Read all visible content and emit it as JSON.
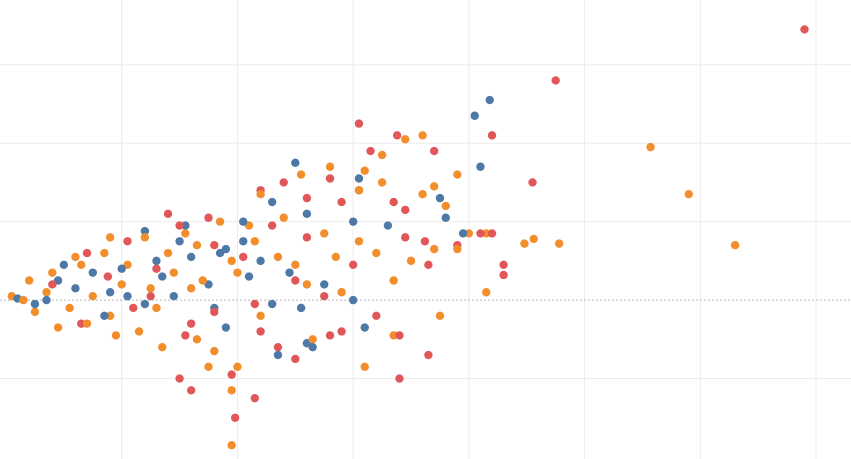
{
  "colors": {
    "background": "#ffffff",
    "grid": "#ececec",
    "zero_line": "#b8b8b8",
    "red": "#e15759",
    "blue": "#4e79a7",
    "orange": "#f28e2b"
  },
  "chart_data": {
    "type": "scatter",
    "title": "",
    "xlabel": "",
    "ylabel": "",
    "xlim": [
      0,
      7.25
    ],
    "ylim": [
      -2,
      3.8
    ],
    "x_gridlines": [
      1,
      2,
      3,
      4,
      5,
      6,
      7
    ],
    "y_gridlines": [
      -1,
      0,
      1,
      2,
      3
    ],
    "zero_line": {
      "y": 0,
      "style": "dotted"
    },
    "grid": true,
    "legend": "none",
    "series": [
      {
        "color_key": "red",
        "points": [
          [
            6.9,
            3.45
          ],
          [
            4.75,
            2.8
          ],
          [
            3.05,
            2.25
          ],
          [
            3.38,
            2.1
          ],
          [
            4.2,
            2.1
          ],
          [
            3.15,
            1.9
          ],
          [
            3.7,
            1.9
          ],
          [
            4.55,
            1.5
          ],
          [
            2.4,
            1.5
          ],
          [
            2.2,
            1.4
          ],
          [
            2.8,
            1.55
          ],
          [
            1.4,
            1.1
          ],
          [
            1.75,
            1.05
          ],
          [
            2.6,
            1.3
          ],
          [
            2.9,
            1.25
          ],
          [
            3.45,
            1.15
          ],
          [
            4.2,
            0.85
          ],
          [
            4.3,
            0.32
          ],
          [
            3.9,
            0.7
          ],
          [
            3.65,
            0.45
          ],
          [
            2.5,
            0.25
          ],
          [
            2.15,
            -0.05
          ],
          [
            1.8,
            -0.15
          ],
          [
            1.6,
            -0.3
          ],
          [
            2.2,
            -0.4
          ],
          [
            2.35,
            -0.6
          ],
          [
            2.9,
            -0.4
          ],
          [
            2.55,
            -0.1
          ],
          [
            3.2,
            -0.2
          ],
          [
            2.75,
            0.05
          ],
          [
            3.35,
            1.25
          ],
          [
            3.65,
            -0.7
          ],
          [
            3.4,
            -0.45
          ],
          [
            1.5,
            0.95
          ],
          [
            1.25,
            0.05
          ],
          [
            1.55,
            -0.45
          ],
          [
            1.95,
            -0.95
          ],
          [
            1.5,
            -1.0
          ],
          [
            1.6,
            -1.15
          ],
          [
            1.98,
            -1.5
          ],
          [
            2.15,
            -1.25
          ],
          [
            3.4,
            -1.0
          ],
          [
            3.62,
            0.75
          ],
          [
            4.1,
            0.85
          ],
          [
            4.3,
            0.45
          ],
          [
            2.05,
            0.55
          ],
          [
            2.3,
            0.95
          ],
          [
            3.0,
            0.45
          ],
          [
            3.45,
            0.8
          ],
          [
            2.6,
            0.8
          ],
          [
            1.8,
            0.7
          ],
          [
            1.05,
            0.75
          ],
          [
            0.88,
            0.3
          ],
          [
            1.1,
            -0.1
          ],
          [
            0.65,
            -0.3
          ],
          [
            0.4,
            0.2
          ],
          [
            2.5,
            -0.75
          ],
          [
            2.8,
            -0.45
          ],
          [
            0.7,
            0.6
          ],
          [
            1.3,
            0.4
          ]
        ]
      },
      {
        "color_key": "blue",
        "points": [
          [
            4.18,
            2.55
          ],
          [
            4.05,
            2.35
          ],
          [
            2.5,
            1.75
          ],
          [
            4.1,
            1.7
          ],
          [
            3.05,
            1.4
          ],
          [
            2.3,
            1.25
          ],
          [
            2.6,
            1.1
          ],
          [
            3.0,
            1.0
          ],
          [
            3.8,
            1.05
          ],
          [
            3.3,
            0.95
          ],
          [
            1.2,
            0.88
          ],
          [
            1.5,
            0.75
          ],
          [
            1.9,
            0.65
          ],
          [
            2.2,
            0.5
          ],
          [
            2.45,
            0.35
          ],
          [
            2.1,
            0.3
          ],
          [
            1.75,
            0.2
          ],
          [
            1.45,
            0.05
          ],
          [
            1.2,
            -0.05
          ],
          [
            0.9,
            0.1
          ],
          [
            0.6,
            0.15
          ],
          [
            0.35,
            0.0
          ],
          [
            0.1,
            0.02
          ],
          [
            0.45,
            0.25
          ],
          [
            0.75,
            0.35
          ],
          [
            1.0,
            0.4
          ],
          [
            1.3,
            0.5
          ],
          [
            1.6,
            0.55
          ],
          [
            1.85,
            0.6
          ],
          [
            2.05,
            0.75
          ],
          [
            2.75,
            0.2
          ],
          [
            3.0,
            0.0
          ],
          [
            2.55,
            -0.1
          ],
          [
            2.3,
            -0.05
          ],
          [
            1.8,
            -0.1
          ],
          [
            1.9,
            -0.35
          ],
          [
            2.65,
            -0.6
          ],
          [
            2.35,
            -0.7
          ],
          [
            2.6,
            -0.55
          ],
          [
            3.1,
            -0.35
          ],
          [
            3.05,
            1.55
          ],
          [
            3.75,
            1.3
          ],
          [
            1.55,
            0.95
          ],
          [
            2.05,
            1.0
          ],
          [
            0.5,
            0.45
          ],
          [
            1.05,
            0.05
          ],
          [
            0.25,
            -0.05
          ],
          [
            3.95,
            0.85
          ],
          [
            1.35,
            0.3
          ],
          [
            0.85,
            -0.2
          ]
        ]
      },
      {
        "color_key": "orange",
        "points": [
          [
            5.57,
            1.95
          ],
          [
            5.9,
            1.35
          ],
          [
            6.3,
            0.7
          ],
          [
            4.78,
            0.72
          ],
          [
            4.56,
            0.78
          ],
          [
            4.48,
            0.72
          ],
          [
            4.15,
            0.85
          ],
          [
            4.0,
            0.85
          ],
          [
            3.8,
            1.2
          ],
          [
            3.6,
            1.35
          ],
          [
            3.25,
            1.5
          ],
          [
            3.05,
            1.4
          ],
          [
            2.8,
            1.7
          ],
          [
            2.55,
            1.6
          ],
          [
            2.2,
            1.35
          ],
          [
            2.4,
            1.05
          ],
          [
            2.1,
            0.95
          ],
          [
            1.85,
            1.0
          ],
          [
            1.55,
            0.85
          ],
          [
            1.2,
            0.8
          ],
          [
            0.9,
            0.8
          ],
          [
            0.65,
            0.45
          ],
          [
            0.4,
            0.35
          ],
          [
            0.2,
            0.25
          ],
          [
            0.05,
            0.05
          ],
          [
            0.25,
            -0.15
          ],
          [
            0.45,
            -0.35
          ],
          [
            0.7,
            -0.3
          ],
          [
            0.9,
            -0.2
          ],
          [
            1.15,
            -0.4
          ],
          [
            1.35,
            -0.6
          ],
          [
            1.65,
            -0.5
          ],
          [
            1.8,
            -0.65
          ],
          [
            2.0,
            -0.85
          ],
          [
            1.75,
            -0.85
          ],
          [
            1.95,
            -1.15
          ],
          [
            1.95,
            -1.85
          ],
          [
            2.2,
            -0.2
          ],
          [
            2.6,
            0.2
          ],
          [
            2.9,
            0.1
          ],
          [
            3.2,
            0.6
          ],
          [
            3.5,
            0.5
          ],
          [
            3.75,
            -0.2
          ],
          [
            3.9,
            0.65
          ],
          [
            4.15,
            0.1
          ],
          [
            3.35,
            -0.45
          ],
          [
            2.65,
            -0.5
          ],
          [
            3.1,
            1.65
          ],
          [
            3.25,
            1.85
          ],
          [
            3.45,
            2.05
          ],
          [
            3.6,
            2.1
          ],
          [
            3.7,
            1.45
          ],
          [
            3.9,
            1.6
          ],
          [
            1.05,
            0.45
          ],
          [
            1.25,
            0.15
          ],
          [
            1.45,
            0.35
          ],
          [
            1.7,
            0.25
          ],
          [
            2.0,
            0.35
          ],
          [
            2.35,
            0.55
          ],
          [
            2.75,
            0.85
          ],
          [
            3.05,
            0.75
          ],
          [
            2.85,
            0.55
          ],
          [
            2.15,
            0.75
          ],
          [
            1.95,
            0.5
          ],
          [
            1.6,
            0.15
          ],
          [
            1.3,
            -0.1
          ],
          [
            1.0,
            0.2
          ],
          [
            0.75,
            0.05
          ],
          [
            0.55,
            -0.1
          ],
          [
            0.35,
            0.1
          ],
          [
            0.15,
            0.0
          ],
          [
            0.6,
            0.55
          ],
          [
            0.85,
            0.6
          ],
          [
            1.4,
            0.6
          ],
          [
            1.65,
            0.7
          ],
          [
            2.5,
            0.45
          ],
          [
            3.35,
            0.25
          ],
          [
            3.7,
            0.65
          ],
          [
            0.95,
            -0.45
          ],
          [
            3.1,
            -0.85
          ]
        ]
      }
    ]
  }
}
